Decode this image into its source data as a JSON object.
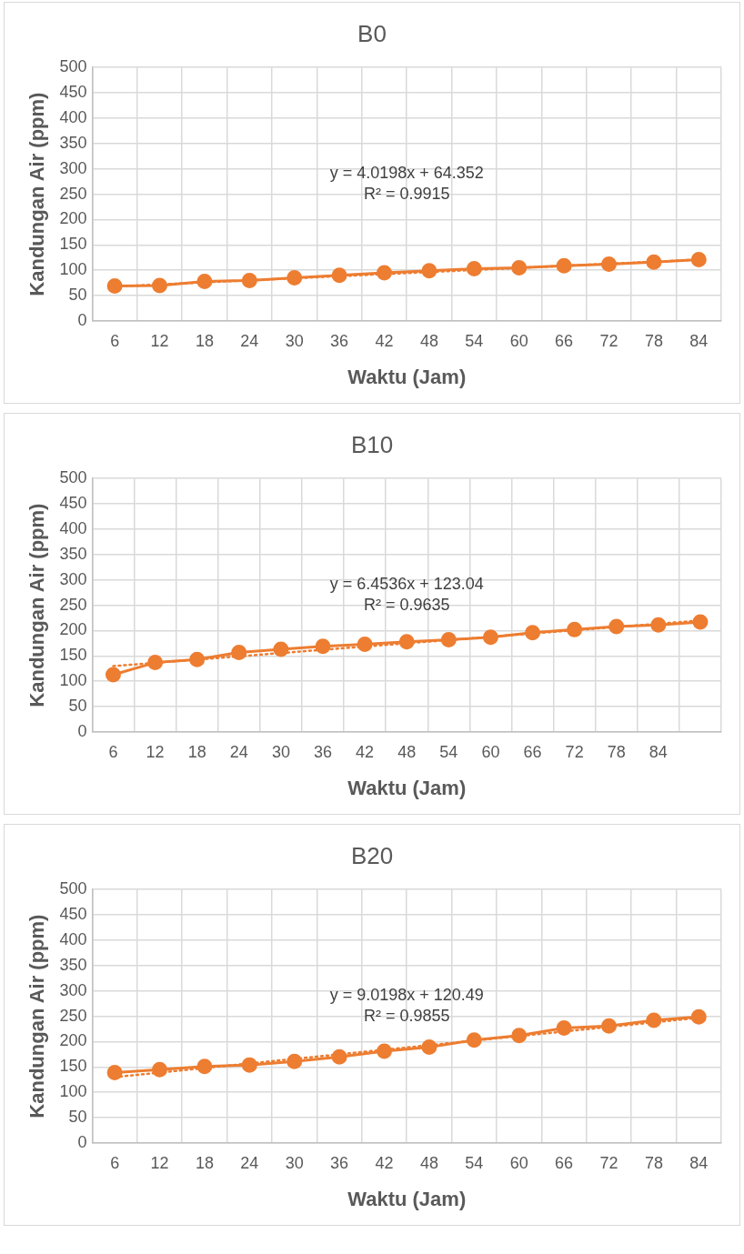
{
  "chart_data": [
    {
      "type": "line",
      "title": "B0",
      "xlabel": "Waktu (Jam)",
      "ylabel": "Kandungan Air (ppm)",
      "categories": [
        "6",
        "12",
        "18",
        "24",
        "30",
        "36",
        "42",
        "48",
        "54",
        "60",
        "66",
        "72",
        "78",
        "84"
      ],
      "series": [
        {
          "color": "#ed7d31",
          "marker": "circle",
          "values": [
            69,
            70,
            78,
            80,
            85,
            90,
            95,
            99,
            103,
            105,
            109,
            112,
            116,
            121
          ]
        },
        {
          "color": "#ed7d31",
          "marker": "none",
          "line_style": "dotted",
          "values": [
            68,
            null,
            null,
            null,
            null,
            null,
            null,
            null,
            null,
            null,
            null,
            null,
            null,
            121
          ]
        }
      ],
      "ylim": [
        0,
        500
      ],
      "yticks": [
        0,
        50,
        100,
        150,
        200,
        250,
        300,
        350,
        400,
        450,
        500
      ],
      "grid": true,
      "legend": false,
      "annotations": [
        "y = 4.0198x + 64.352",
        "R² = 0.9915"
      ]
    },
    {
      "type": "line",
      "title": "B10",
      "xlabel": "Waktu (Jam)",
      "ylabel": "Kandungan Air (ppm)",
      "categories": [
        "6",
        "12",
        "18",
        "24",
        "30",
        "36",
        "42",
        "48",
        "54",
        "60",
        "66",
        "72",
        "78",
        "84",
        null
      ],
      "series": [
        {
          "color": "#ed7d31",
          "marker": "circle",
          "values": [
            113,
            137,
            143,
            157,
            163,
            169,
            173,
            178,
            182,
            187,
            196,
            202,
            208,
            211,
            217
          ]
        },
        {
          "color": "#ed7d31",
          "marker": "none",
          "line_style": "dotted",
          "values": [
            130,
            null,
            null,
            null,
            null,
            null,
            null,
            null,
            null,
            null,
            null,
            null,
            null,
            null,
            220
          ]
        }
      ],
      "ylim": [
        0,
        500
      ],
      "yticks": [
        0,
        50,
        100,
        150,
        200,
        250,
        300,
        350,
        400,
        450,
        500
      ],
      "grid": true,
      "legend": false,
      "annotations": [
        "y = 6.4536x + 123.04",
        "R² = 0.9635"
      ]
    },
    {
      "type": "line",
      "title": "B20",
      "xlabel": "Waktu (Jam)",
      "ylabel": "Kandungan Air (ppm)",
      "categories": [
        "6",
        "12",
        "18",
        "24",
        "30",
        "36",
        "42",
        "48",
        "54",
        "60",
        "66",
        "72",
        "78",
        "84"
      ],
      "series": [
        {
          "color": "#ed7d31",
          "marker": "circle",
          "values": [
            139,
            145,
            151,
            154,
            161,
            170,
            181,
            189,
            203,
            212,
            227,
            231,
            242,
            249
          ]
        },
        {
          "color": "#ed7d31",
          "marker": "none",
          "line_style": "dotted",
          "values": [
            130,
            null,
            null,
            null,
            null,
            null,
            null,
            null,
            null,
            null,
            null,
            null,
            null,
            247
          ]
        }
      ],
      "ylim": [
        0,
        500
      ],
      "yticks": [
        0,
        50,
        100,
        150,
        200,
        250,
        300,
        350,
        400,
        450,
        500
      ],
      "grid": true,
      "legend": false,
      "annotations": [
        "y = 9.0198x + 120.49",
        "R² = 0.9855"
      ]
    }
  ]
}
